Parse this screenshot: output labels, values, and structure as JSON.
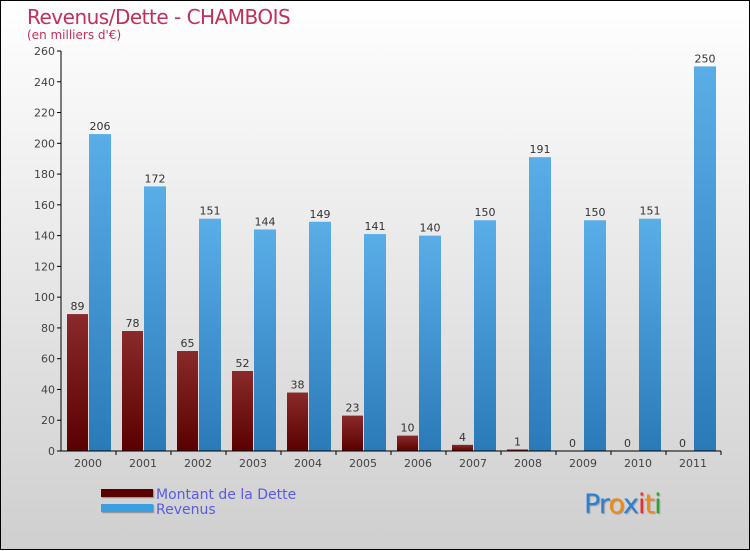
{
  "chart_data": {
    "type": "bar",
    "title": "Revenus/Dette - CHAMBOIS",
    "subtitle": "(en milliers d'€)",
    "categories": [
      "2000",
      "2001",
      "2002",
      "2003",
      "2004",
      "2005",
      "2006",
      "2007",
      "2008",
      "2009",
      "2010",
      "2011"
    ],
    "series": [
      {
        "name": "Montant de la Dette",
        "color": "#6b0a0a",
        "values": [
          89,
          78,
          65,
          52,
          38,
          23,
          10,
          4,
          1,
          0,
          0,
          0
        ]
      },
      {
        "name": "Revenus",
        "color": "#3a9ee0",
        "values": [
          206,
          172,
          151,
          144,
          149,
          141,
          140,
          150,
          191,
          150,
          151,
          250
        ]
      }
    ],
    "ylim": [
      0,
      260
    ],
    "yticks": [
      0,
      20,
      40,
      60,
      80,
      100,
      120,
      140,
      160,
      180,
      200,
      220,
      240,
      260
    ],
    "legend": "bottom-left"
  },
  "logo": {
    "text": "Proxiti",
    "letters": [
      "P",
      "r",
      "o",
      "x",
      "i",
      "t",
      "i"
    ],
    "colors": [
      "#2a7fd0",
      "#2a7fd0",
      "#f08a10",
      "#2a7fd0",
      "#e03030",
      "#f08a10",
      "#30a030"
    ]
  }
}
